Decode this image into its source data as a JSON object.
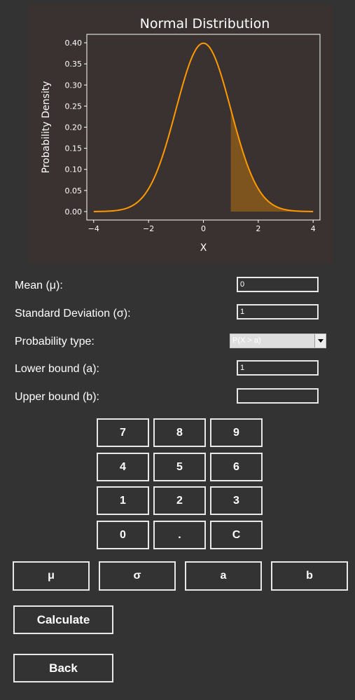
{
  "chart_data": {
    "type": "line",
    "title": "Normal Distribution",
    "xlabel": "X",
    "ylabel": "Probability Density",
    "xlim": [
      -4.25,
      4.25
    ],
    "ylim": [
      -0.02,
      0.42
    ],
    "xticks": [
      -4,
      -2,
      0,
      2,
      4
    ],
    "xtick_labels": [
      "−4",
      "−2",
      "0",
      "2",
      "4"
    ],
    "yticks": [
      0.0,
      0.05,
      0.1,
      0.15,
      0.2,
      0.25,
      0.3,
      0.35,
      0.4
    ],
    "ytick_labels": [
      "0.00",
      "0.05",
      "0.10",
      "0.15",
      "0.20",
      "0.25",
      "0.30",
      "0.35",
      "0.40"
    ],
    "series": [
      {
        "x": [
          -4,
          -3.5,
          -3,
          -2.5,
          -2,
          -1.5,
          -1,
          -0.5,
          0,
          0.5,
          1,
          1.5,
          2,
          2.5,
          3,
          3.5,
          4
        ],
        "y": [
          0.0001,
          0.0009,
          0.0044,
          0.0175,
          0.054,
          0.1295,
          0.242,
          0.3521,
          0.3989,
          0.3521,
          0.242,
          0.1295,
          0.054,
          0.0175,
          0.0044,
          0.0009,
          0.0001
        ]
      }
    ],
    "shaded_region": {
      "from": 1,
      "to": 4
    },
    "grid": false,
    "line_color": "#ff9900",
    "fill_color": "#8a5a1a",
    "text_color": "#ffffff",
    "background": "#3a3230"
  },
  "form": {
    "mean_label": "Mean (μ):",
    "mean_value": "0",
    "sd_label": "Standard Deviation (σ):",
    "sd_value": "1",
    "prob_type_label": "Probability type:",
    "prob_type_value": "P(X > a)",
    "lower_label": "Lower bound (a):",
    "lower_value": "1",
    "upper_label": "Upper bound (b):",
    "upper_value": ""
  },
  "keypad": {
    "k7": "7",
    "k8": "8",
    "k9": "9",
    "k4": "4",
    "k5": "5",
    "k6": "6",
    "k1": "1",
    "k2": "2",
    "k3": "3",
    "k0": "0",
    "dot": ".",
    "clear": "C"
  },
  "symbols": {
    "mu": "μ",
    "sigma": "σ",
    "a": "a",
    "b": "b"
  },
  "actions": {
    "calculate": "Calculate",
    "back": "Back"
  }
}
